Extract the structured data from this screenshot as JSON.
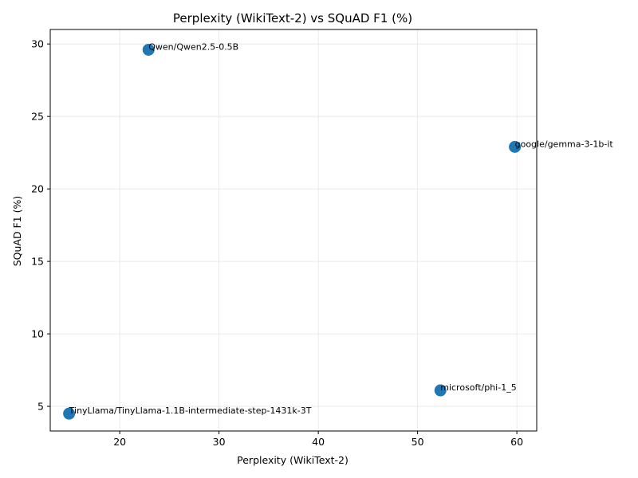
{
  "chart_data": {
    "type": "scatter",
    "title": "Perplexity (WikiText-2) vs SQuAD F1 (%)",
    "xlabel": "Perplexity (WikiText-2)",
    "ylabel": "SQuAD F1 (%)",
    "xlim": [
      13.0,
      62.0
    ],
    "ylim": [
      3.3,
      31.0
    ],
    "xticks": [
      20,
      30,
      40,
      50,
      60
    ],
    "yticks": [
      5,
      10,
      15,
      20,
      25,
      30
    ],
    "grid": true,
    "marker_color": "#1f77b4",
    "points": [
      {
        "label": "Qwen/Qwen2.5-0.5B",
        "x": 22.9,
        "y": 29.6
      },
      {
        "label": "google/gemma-3-1b-it",
        "x": 59.8,
        "y": 22.9
      },
      {
        "label": "microsoft/phi-1_5",
        "x": 52.3,
        "y": 6.1
      },
      {
        "label": "TinyLlama/TinyLlama-1.1B-intermediate-step-1431k-3T",
        "x": 14.9,
        "y": 4.5
      }
    ]
  }
}
